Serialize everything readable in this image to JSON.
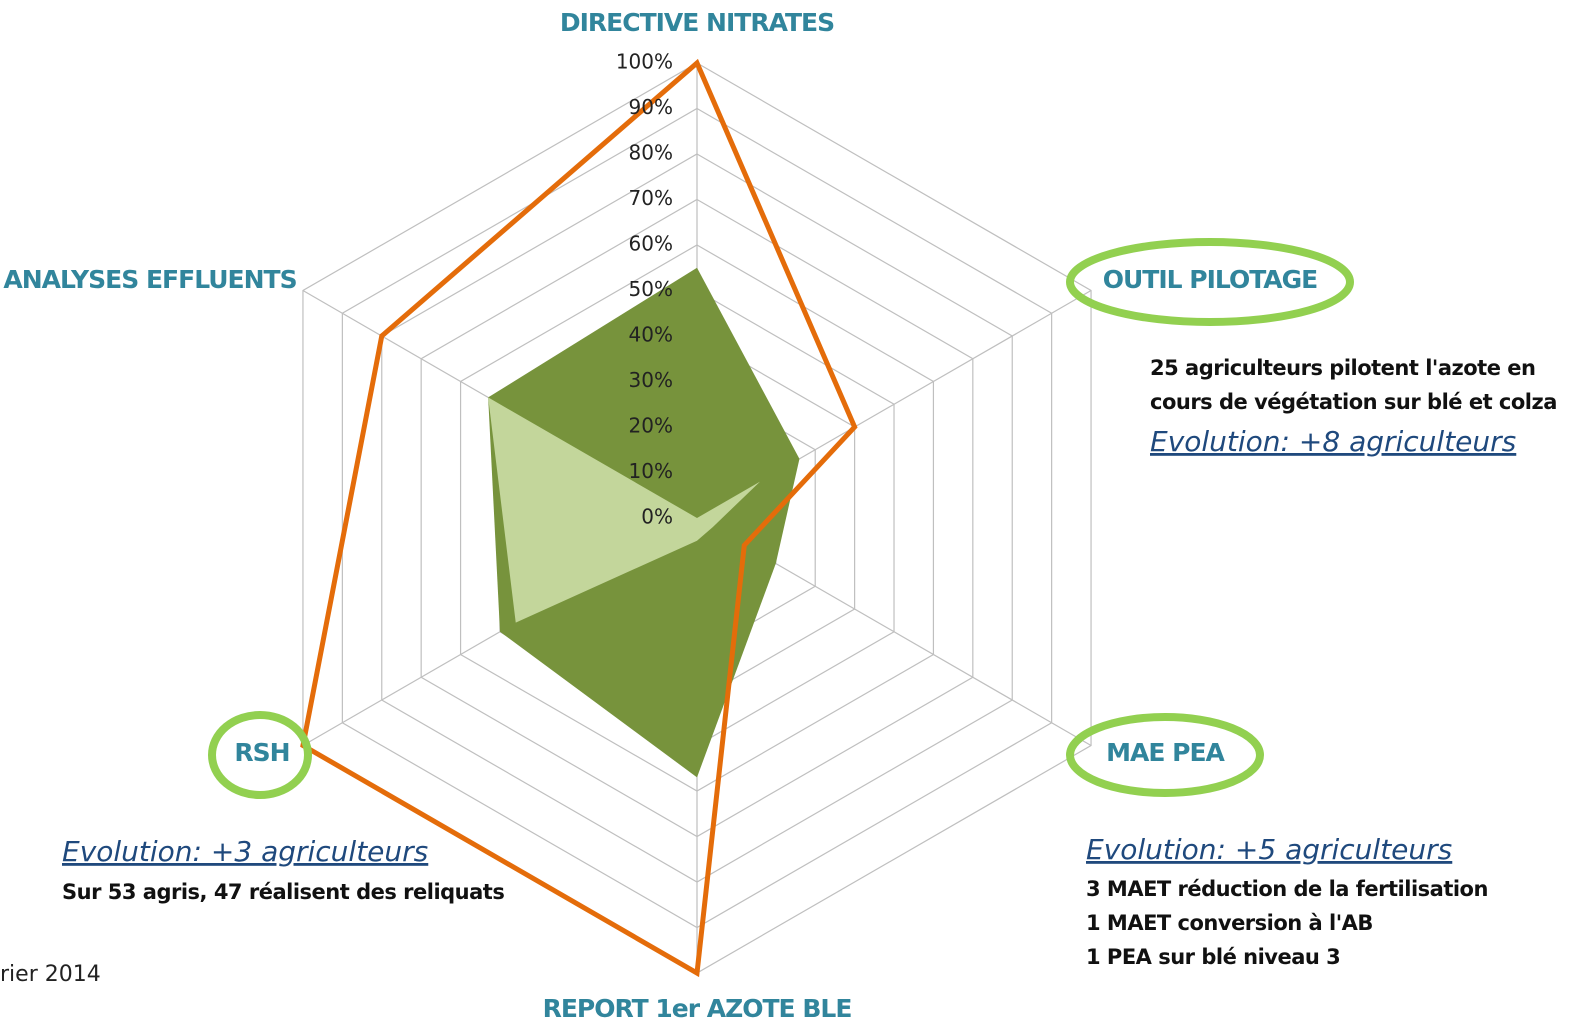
{
  "chart_data": {
    "type": "radar",
    "categories": [
      "DIRECTIVE NITRATES",
      "OUTIL PILOTAGE",
      "MAE PEA",
      "REPORT 1er AZOTE BLE",
      "RSH",
      "ANALYSES EFFLUENTS"
    ],
    "series": [
      {
        "color": "#77933c",
        "values": [
          55,
          26,
          20,
          57,
          50,
          53
        ]
      },
      {
        "color": "#c3d69b",
        "values": [
          0,
          16,
          4,
          5,
          46,
          53
        ]
      },
      {
        "color": "#e46c0a",
        "values": [
          100,
          40,
          12,
          100,
          100,
          80
        ]
      }
    ],
    "ylim": [
      0,
      100
    ],
    "yticks": [
      {
        "value": 0,
        "label": "0%"
      },
      {
        "value": 10,
        "label": "10%"
      },
      {
        "value": 20,
        "label": "20%"
      },
      {
        "value": 30,
        "label": "30%"
      },
      {
        "value": 40,
        "label": "40%"
      },
      {
        "value": 50,
        "label": "50%"
      },
      {
        "value": 60,
        "label": "60%"
      },
      {
        "value": 70,
        "label": "70%"
      },
      {
        "value": 80,
        "label": "80%"
      },
      {
        "value": 90,
        "label": "90%"
      },
      {
        "value": 100,
        "label": "100%"
      }
    ],
    "grid": true,
    "annotations": {
      "outil": {
        "lines": [
          "25 agriculteurs pilotent l'azote en",
          "cours de végétation sur blé et colza"
        ],
        "evolution": "Evolution: +8 agriculteurs"
      },
      "mae": {
        "evolution": "Evolution: +5 agriculteurs",
        "lines": [
          "3 MAET réduction de la fertilisation",
          "1 MAET conversion à l'AB",
          "1 PEA sur blé niveau 3"
        ]
      },
      "rsh": {
        "evolution": "Evolution: +3 agriculteurs",
        "lines": [
          "Sur 53 agris, 47 réalisent des reliquats"
        ]
      }
    },
    "footer": "rier 2014"
  }
}
